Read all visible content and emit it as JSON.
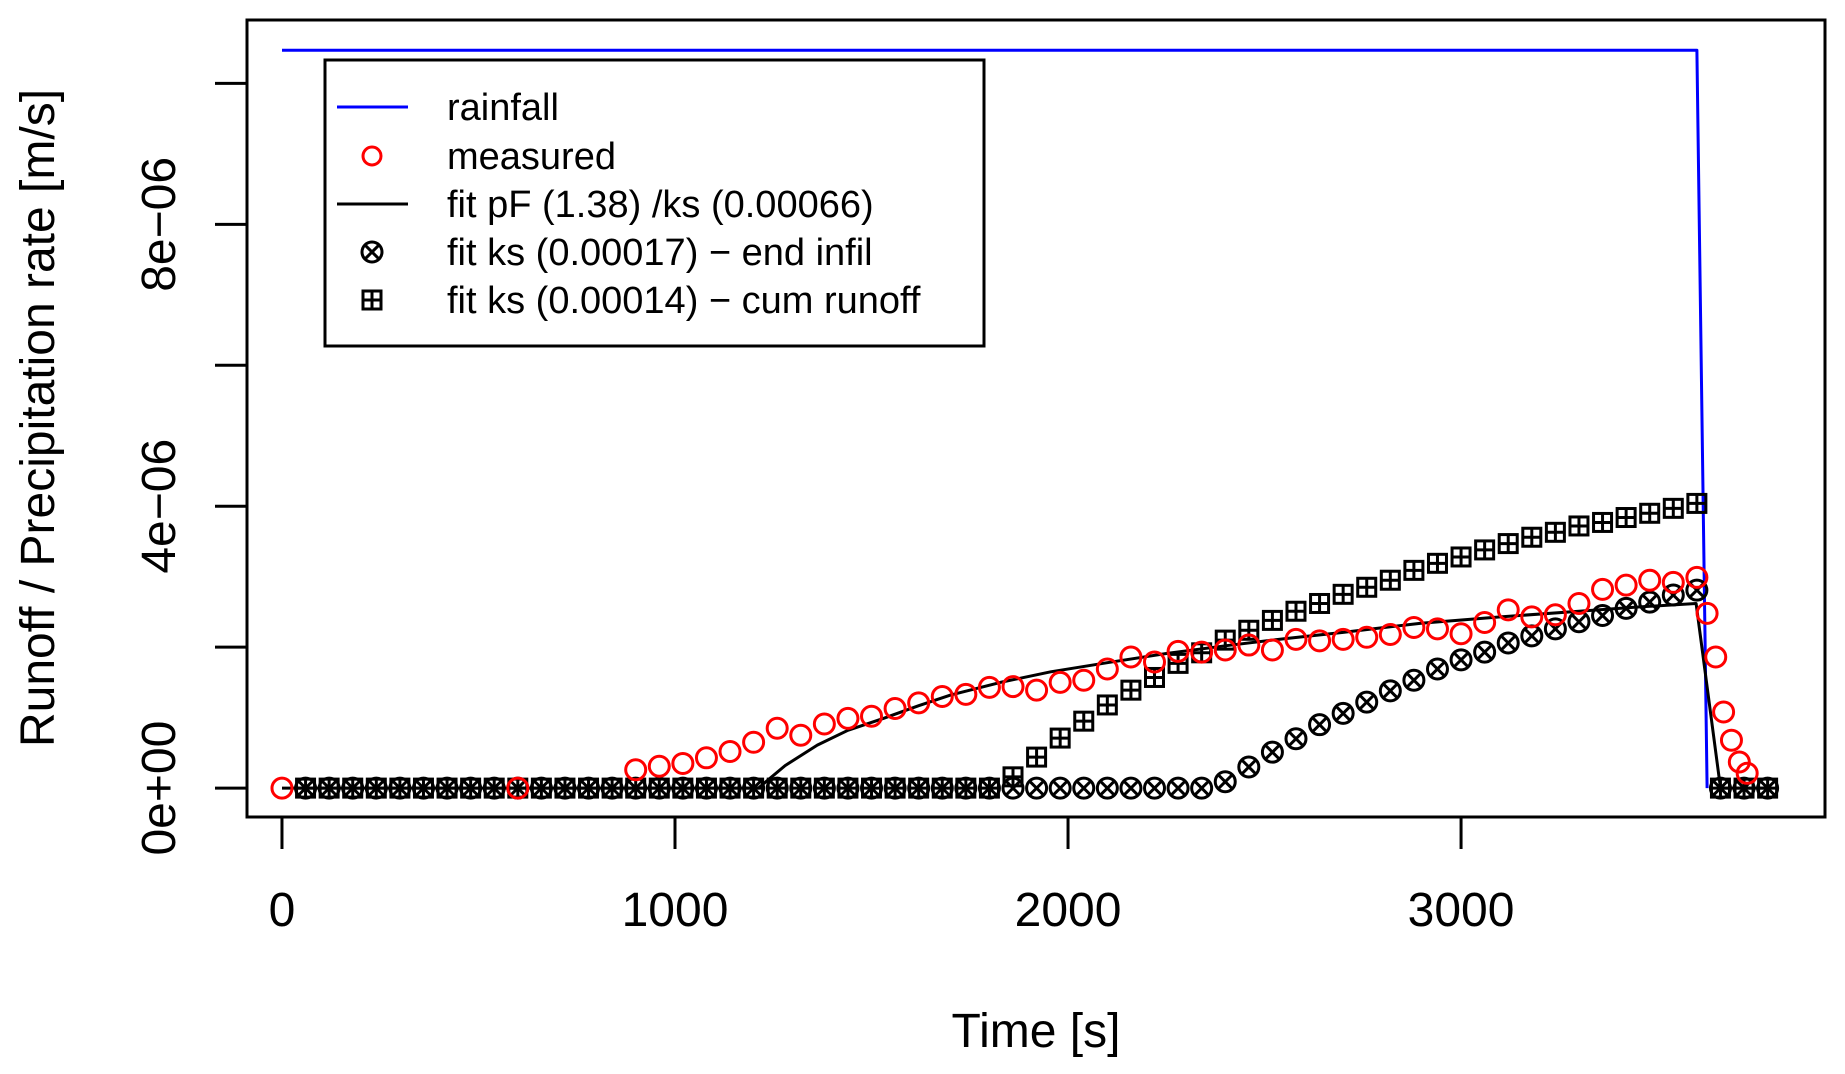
{
  "chart_data": {
    "type": "line",
    "title": "",
    "xlabel": "Time [s]",
    "ylabel": "Runoff / Precipitation rate [m/s]",
    "xlim": [
      -89,
      3926
    ],
    "ylim": [
      -4.1e-07,
      1.09e-05
    ],
    "x_ticks": [
      0,
      1000,
      2000,
      3000
    ],
    "x_tick_labels": [
      "0",
      "1000",
      "2000",
      "3000"
    ],
    "y_ticks": [
      0,
      2e-06,
      4e-06,
      6e-06,
      8e-06,
      1e-05
    ],
    "y_tick_labels": [
      "0e+00",
      "",
      "4e−06",
      "",
      "8e−06",
      ""
    ],
    "grid": false,
    "legend_position": "top-left",
    "colors": {
      "rainfall": "#0000ff",
      "measured": "#ff0000",
      "fit": "#000000",
      "axis": "#000000"
    },
    "series": [
      {
        "name": "rainfall",
        "label": "rainfall",
        "kind": "line",
        "color": "#0000ff",
        "x": [
          0,
          3600,
          3626
        ],
        "y": [
          1.047e-05,
          1.047e-05,
          0
        ]
      },
      {
        "name": "measured",
        "label": "measured",
        "kind": "circle",
        "color": "#ff0000",
        "x": [
          0,
          600,
          900,
          960,
          1020,
          1080,
          1140,
          1200,
          1260,
          1320,
          1380,
          1440,
          1500,
          1560,
          1620,
          1680,
          1740,
          1800,
          1860,
          1920,
          1980,
          2040,
          2100,
          2160,
          2220,
          2280,
          2340,
          2400,
          2460,
          2520,
          2580,
          2640,
          2700,
          2760,
          2820,
          2880,
          2940,
          3000,
          3060,
          3120,
          3180,
          3240,
          3300,
          3360,
          3420,
          3480,
          3540,
          3600,
          3626,
          3648,
          3668,
          3688,
          3708,
          3728
        ],
        "y": [
          0,
          0,
          2.6e-07,
          3.1e-07,
          3.5e-07,
          4.3e-07,
          5.2e-07,
          6.5e-07,
          8.5e-07,
          7.5e-07,
          9.1e-07,
          9.9e-07,
          1.02e-06,
          1.13e-06,
          1.21e-06,
          1.3e-06,
          1.33e-06,
          1.43e-06,
          1.44e-06,
          1.39e-06,
          1.5e-06,
          1.53e-06,
          1.69e-06,
          1.86e-06,
          1.79e-06,
          1.94e-06,
          1.93e-06,
          1.96e-06,
          2.03e-06,
          1.96e-06,
          2.11e-06,
          2.09e-06,
          2.11e-06,
          2.14e-06,
          2.18e-06,
          2.28e-06,
          2.26e-06,
          2.19e-06,
          2.35e-06,
          2.53e-06,
          2.43e-06,
          2.46e-06,
          2.62e-06,
          2.82e-06,
          2.88e-06,
          2.95e-06,
          2.92e-06,
          2.99e-06,
          2.48e-06,
          1.86e-06,
          1.08e-06,
          6.8e-07,
          3.7e-07,
          2.1e-07
        ]
      },
      {
        "name": "fit_pF",
        "label": "fit pF (1.38) /ks (0.00066)",
        "kind": "line",
        "color": "#000000",
        "x": [
          0,
          1200,
          1212,
          1280,
          1362,
          1440,
          1531,
          1620,
          1701,
          1828,
          1956,
          2100,
          2250,
          2400,
          2550,
          2700,
          2898,
          3100,
          3300,
          3450,
          3598,
          3660,
          3720,
          3780
        ],
        "y": [
          0,
          0,
          0,
          3.2e-07,
          6.1e-07,
          8.2e-07,
          9.9e-07,
          1.17e-06,
          1.32e-06,
          1.5e-06,
          1.65e-06,
          1.78e-06,
          1.91e-06,
          2.02e-06,
          2.12e-06,
          2.21e-06,
          2.34e-06,
          2.43e-06,
          2.51e-06,
          2.57e-06,
          2.62e-06,
          0,
          0,
          0
        ]
      },
      {
        "name": "fit_ks_end_infil",
        "label": "fit ks (0.00017) − end infil",
        "kind": "circle-x",
        "color": "#000000",
        "x": [
          60,
          120,
          180,
          240,
          300,
          360,
          420,
          480,
          540,
          600,
          660,
          720,
          780,
          840,
          900,
          960,
          1020,
          1080,
          1140,
          1200,
          1260,
          1320,
          1380,
          1440,
          1500,
          1560,
          1620,
          1680,
          1740,
          1800,
          1860,
          1920,
          1980,
          2040,
          2100,
          2160,
          2220,
          2280,
          2340,
          2400,
          2460,
          2520,
          2580,
          2640,
          2700,
          2760,
          2820,
          2880,
          2940,
          3000,
          3060,
          3120,
          3180,
          3240,
          3300,
          3360,
          3420,
          3480,
          3540,
          3600,
          3660,
          3720,
          3780
        ],
        "y": [
          0,
          0,
          0,
          0,
          0,
          0,
          0,
          0,
          0,
          0,
          0,
          0,
          0,
          0,
          0,
          0,
          0,
          0,
          0,
          0,
          0,
          0,
          0,
          0,
          0,
          0,
          0,
          0,
          0,
          0,
          0,
          0,
          0,
          0,
          0,
          0,
          0,
          0,
          0,
          9e-08,
          3e-07,
          5.1e-07,
          7e-07,
          9e-07,
          1.06e-06,
          1.22e-06,
          1.38e-06,
          1.53e-06,
          1.69e-06,
          1.82e-06,
          1.93e-06,
          2.06e-06,
          2.16e-06,
          2.26e-06,
          2.36e-06,
          2.45e-06,
          2.55e-06,
          2.64e-06,
          2.74e-06,
          2.81e-06,
          0,
          0,
          0
        ]
      },
      {
        "name": "fit_ks_cum_runoff",
        "label": "fit ks (0.00014) − cum runoff",
        "kind": "square-plus",
        "color": "#000000",
        "x": [
          60,
          120,
          180,
          240,
          300,
          360,
          420,
          480,
          540,
          600,
          660,
          720,
          780,
          840,
          900,
          960,
          1020,
          1080,
          1140,
          1200,
          1260,
          1320,
          1380,
          1440,
          1500,
          1560,
          1620,
          1680,
          1740,
          1800,
          1860,
          1920,
          1980,
          2040,
          2100,
          2160,
          2220,
          2280,
          2340,
          2400,
          2460,
          2520,
          2580,
          2640,
          2700,
          2760,
          2820,
          2880,
          2940,
          3000,
          3060,
          3120,
          3180,
          3240,
          3300,
          3360,
          3420,
          3480,
          3540,
          3600,
          3660,
          3720,
          3780
        ],
        "y": [
          0,
          0,
          0,
          0,
          0,
          0,
          0,
          0,
          0,
          0,
          0,
          0,
          0,
          0,
          0,
          0,
          0,
          0,
          0,
          0,
          0,
          0,
          0,
          0,
          0,
          0,
          0,
          0,
          0,
          0,
          1.6e-07,
          4.4e-07,
          7.1e-07,
          9.5e-07,
          1.18e-06,
          1.39e-06,
          1.57e-06,
          1.77e-06,
          1.92e-06,
          2.1e-06,
          2.24e-06,
          2.38e-06,
          2.51e-06,
          2.62e-06,
          2.75e-06,
          2.85e-06,
          2.95e-06,
          3.09e-06,
          3.19e-06,
          3.28e-06,
          3.38e-06,
          3.47e-06,
          3.56e-06,
          3.63e-06,
          3.72e-06,
          3.77e-06,
          3.84e-06,
          3.9e-06,
          3.97e-06,
          4.04e-06,
          0,
          0,
          0
        ]
      }
    ]
  }
}
